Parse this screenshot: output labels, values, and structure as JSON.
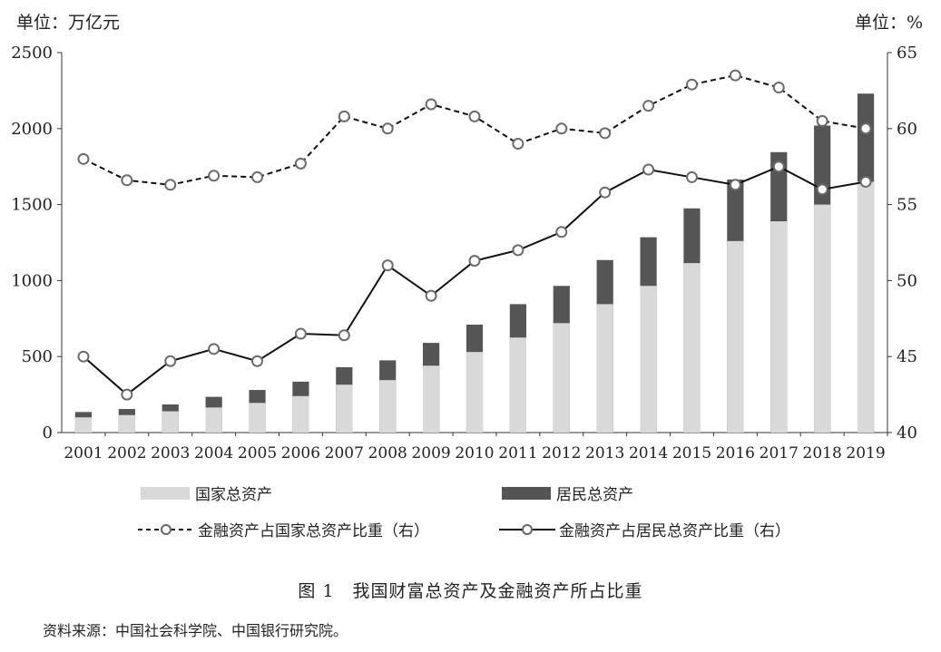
{
  "chart_data": {
    "type": "bar",
    "categories": [
      "2001",
      "2002",
      "2003",
      "2004",
      "2005",
      "2006",
      "2007",
      "2008",
      "2009",
      "2010",
      "2011",
      "2012",
      "2013",
      "2014",
      "2015",
      "2016",
      "2017",
      "2018",
      "2019"
    ],
    "series": [
      {
        "name": "国家总资产",
        "kind": "bar",
        "axis": "left",
        "color": "#d9d9d9",
        "values": [
          100,
          115,
          140,
          165,
          195,
          240,
          315,
          345,
          440,
          530,
          625,
          720,
          845,
          965,
          1115,
          1260,
          1390,
          1500,
          1650
        ]
      },
      {
        "name": "居民总资产",
        "kind": "bar",
        "axis": "left",
        "color": "#555555",
        "values": [
          135,
          155,
          185,
          235,
          280,
          335,
          430,
          475,
          590,
          710,
          845,
          965,
          1135,
          1285,
          1475,
          1665,
          1845,
          2020,
          2230
        ]
      },
      {
        "name": "金融资产占国家总资产比重（右）",
        "kind": "line",
        "axis": "right",
        "dash": true,
        "values": [
          58.0,
          56.6,
          56.3,
          56.9,
          56.8,
          57.7,
          60.8,
          60.0,
          61.6,
          60.8,
          59.0,
          60.0,
          59.7,
          61.5,
          62.9,
          63.5,
          62.7,
          60.5,
          60.0
        ]
      },
      {
        "name": "金融资产占居民总资产比重（右）",
        "kind": "line",
        "axis": "right",
        "dash": false,
        "values": [
          45.0,
          42.5,
          44.7,
          45.5,
          44.7,
          46.5,
          46.4,
          51.0,
          49.0,
          51.3,
          52.0,
          53.2,
          55.8,
          57.3,
          56.8,
          56.3,
          57.5,
          56.0,
          56.5
        ]
      }
    ],
    "y_left": {
      "label": "单位：万亿元",
      "min": 0,
      "max": 2500,
      "ticks": [
        0,
        500,
        1000,
        1500,
        2000,
        2500
      ]
    },
    "y_right": {
      "label": "单位：%",
      "min": 40,
      "max": 65,
      "ticks": [
        40,
        45,
        50,
        55,
        60,
        65
      ]
    },
    "title": "图 1　我国财富总资产及金融资产所占比重",
    "source": "资料来源：中国社会科学院、中国银行研究院。"
  }
}
